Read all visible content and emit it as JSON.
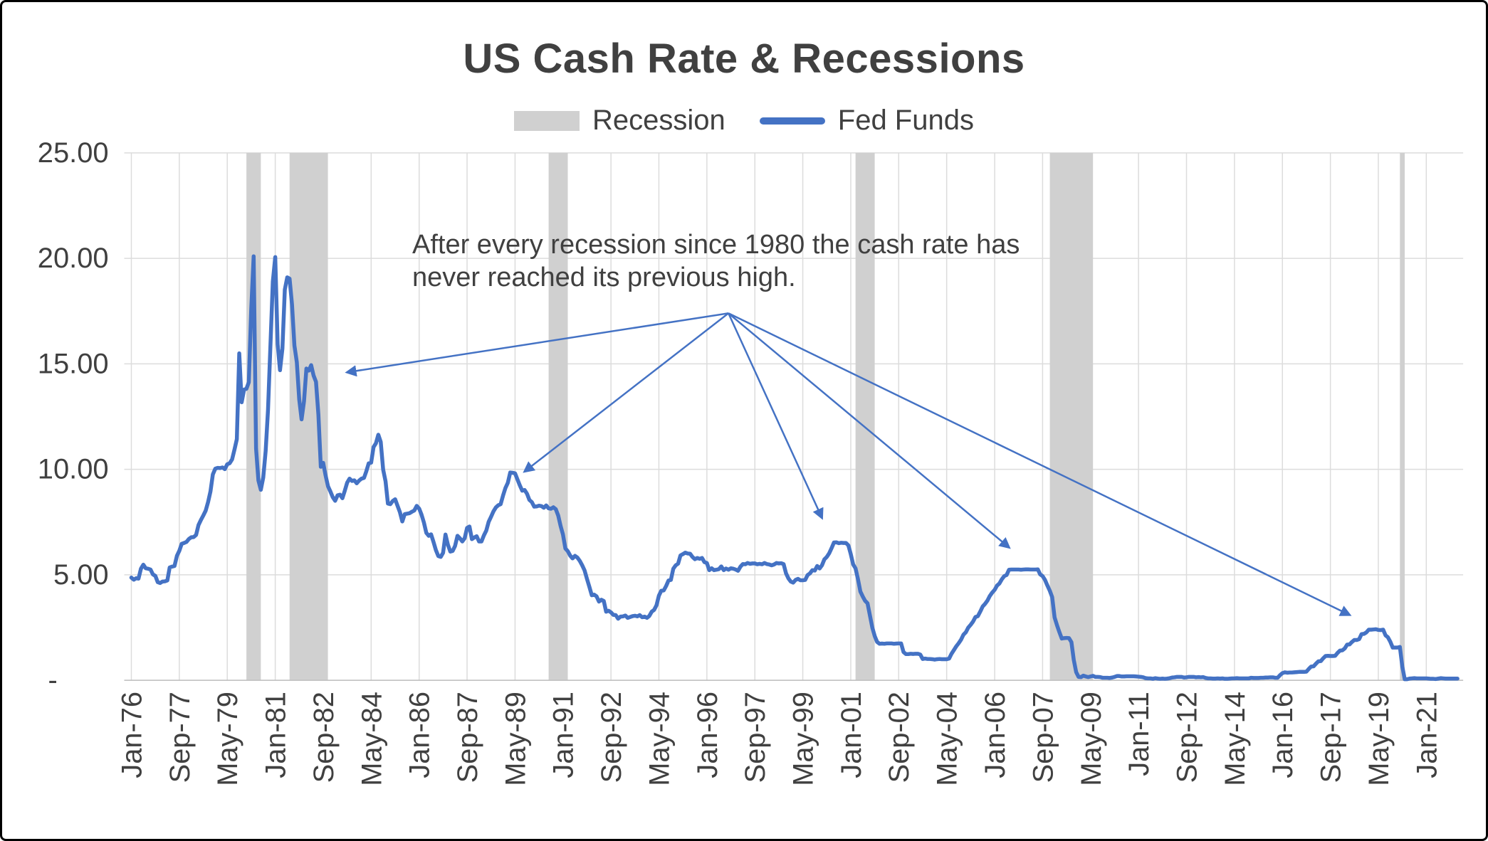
{
  "chart": {
    "legend": {
      "recession": "Recession",
      "fed_funds": "Fed Funds"
    },
    "annotation": {
      "text": "After every recession since 1980 the cash rate has never reached its previous high.",
      "arrow_origin": {
        "month": "1996-10",
        "value": 17.4
      },
      "arrow_targets": [
        {
          "month": "1983-07",
          "value": 14.6
        },
        {
          "month": "1989-09",
          "value": 9.9
        },
        {
          "month": "2000-01",
          "value": 7.7
        },
        {
          "month": "2006-07",
          "value": 6.3
        },
        {
          "month": "2018-05",
          "value": 3.1
        }
      ]
    },
    "colors": {
      "line": "#4472C4",
      "recession": "#D0D0D0",
      "gridline": "#DCDCDC",
      "axis": "#BFBFBF",
      "text": "#404040"
    }
  },
  "chart_data": {
    "type": "line",
    "title": "US Cash Rate & Recessions",
    "xlabel": "",
    "ylabel": "",
    "grid": true,
    "legend_position": "top",
    "legend_entries": [
      "Recession",
      "Fed Funds"
    ],
    "series_name": "Fed Funds",
    "frequency": "monthly",
    "start_month": "1976-01",
    "end_month": "2022-02",
    "ylim": [
      0,
      25
    ],
    "y_ticks": [
      {
        "label": "25.00",
        "value": 25
      },
      {
        "label": "20.00",
        "value": 20
      },
      {
        "label": "15.00",
        "value": 15
      },
      {
        "label": "10.00",
        "value": 10
      },
      {
        "label": "5.00",
        "value": 5
      },
      {
        "label": "-",
        "value": 0
      }
    ],
    "x_tick_interval_months": 20,
    "x_tick_labels": [
      "Jan-76",
      "Sep-77",
      "May-79",
      "Jan-81",
      "Sep-82",
      "May-84",
      "Jan-86",
      "Sep-87",
      "May-89",
      "Jan-91",
      "Sep-92",
      "May-94",
      "Jan-96",
      "Sep-97",
      "May-99",
      "Jan-01",
      "Sep-02",
      "May-04",
      "Jan-06",
      "Sep-07",
      "May-09",
      "Jan-11",
      "Sep-12",
      "May-14",
      "Jan-16",
      "Sep-17",
      "May-19",
      "Jan-21"
    ],
    "recessions": [
      {
        "start": "1980-01",
        "end": "1980-07"
      },
      {
        "start": "1981-07",
        "end": "1982-11"
      },
      {
        "start": "1990-07",
        "end": "1991-03"
      },
      {
        "start": "2001-03",
        "end": "2001-11"
      },
      {
        "start": "2007-12",
        "end": "2009-06"
      },
      {
        "start": "2020-02",
        "end": "2020-04"
      }
    ],
    "values": [
      4.87,
      4.77,
      4.84,
      4.82,
      5.29,
      5.48,
      5.31,
      5.29,
      5.25,
      5.02,
      4.95,
      4.65,
      4.61,
      4.68,
      4.69,
      4.73,
      5.35,
      5.39,
      5.42,
      5.9,
      6.14,
      6.47,
      6.51,
      6.56,
      6.7,
      6.78,
      6.79,
      6.89,
      7.36,
      7.6,
      7.81,
      8.04,
      8.45,
      8.96,
      9.76,
      10.03,
      10.07,
      10.06,
      10.09,
      10.01,
      10.24,
      10.29,
      10.47,
      10.94,
      11.43,
      15.5,
      13.18,
      13.78,
      13.82,
      14.13,
      17.6,
      20.1,
      10.98,
      9.47,
      9.03,
      9.61,
      10.87,
      12.81,
      15.85,
      18.9,
      20.06,
      15.93,
      14.7,
      15.72,
      18.52,
      19.1,
      19.04,
      17.82,
      15.87,
      15.08,
      13.31,
      12.37,
      13.22,
      14.78,
      14.68,
      14.94,
      14.45,
      14.15,
      12.59,
      10.12,
      10.31,
      9.71,
      9.2,
      8.95,
      8.68,
      8.51,
      8.77,
      8.8,
      8.63,
      8.98,
      9.37,
      9.56,
      9.45,
      9.48,
      9.34,
      9.47,
      9.56,
      9.59,
      9.91,
      10.29,
      10.32,
      11.06,
      11.23,
      11.64,
      11.3,
      9.99,
      9.43,
      8.38,
      8.35,
      8.5,
      8.58,
      8.27,
      7.97,
      7.53,
      7.88,
      7.9,
      7.92,
      7.99,
      8.05,
      8.27,
      8.14,
      7.86,
      7.48,
      6.99,
      6.85,
      6.92,
      6.56,
      6.17,
      5.89,
      5.85,
      6.04,
      6.91,
      6.43,
      6.1,
      6.13,
      6.37,
      6.85,
      6.73,
      6.58,
      6.73,
      7.22,
      7.29,
      6.69,
      6.77,
      6.83,
      6.58,
      6.58,
      6.87,
      7.09,
      7.51,
      7.75,
      8.01,
      8.19,
      8.3,
      8.35,
      8.76,
      9.12,
      9.36,
      9.85,
      9.84,
      9.81,
      9.53,
      9.24,
      8.99,
      9.02,
      8.84,
      8.55,
      8.45,
      8.23,
      8.24,
      8.28,
      8.26,
      8.18,
      8.29,
      8.15,
      8.13,
      8.2,
      8.11,
      7.81,
      7.31,
      6.91,
      6.25,
      6.12,
      5.91,
      5.78,
      5.9,
      5.82,
      5.66,
      5.45,
      5.21,
      4.81,
      4.43,
      4.03,
      4.06,
      3.98,
      3.73,
      3.82,
      3.76,
      3.25,
      3.3,
      3.22,
      3.1,
      3.09,
      2.92,
      3.02,
      3.03,
      3.07,
      2.96,
      3.0,
      3.04,
      3.06,
      3.03,
      3.09,
      2.99,
      3.02,
      2.96,
      3.05,
      3.25,
      3.34,
      3.56,
      4.01,
      4.25,
      4.26,
      4.47,
      4.73,
      4.76,
      5.29,
      5.45,
      5.53,
      5.92,
      5.98,
      6.05,
      6.01,
      6.0,
      5.85,
      5.74,
      5.8,
      5.76,
      5.8,
      5.6,
      5.56,
      5.22,
      5.31,
      5.22,
      5.24,
      5.27,
      5.4,
      5.22,
      5.3,
      5.24,
      5.31,
      5.29,
      5.25,
      5.19,
      5.39,
      5.51,
      5.5,
      5.56,
      5.52,
      5.54,
      5.54,
      5.5,
      5.52,
      5.5,
      5.56,
      5.51,
      5.49,
      5.45,
      5.49,
      5.56,
      5.54,
      5.55,
      5.51,
      5.07,
      4.83,
      4.68,
      4.63,
      4.76,
      4.81,
      4.74,
      4.74,
      4.76,
      4.99,
      5.07,
      5.22,
      5.2,
      5.42,
      5.3,
      5.45,
      5.73,
      5.85,
      6.02,
      6.27,
      6.53,
      6.54,
      6.5,
      6.52,
      6.51,
      6.51,
      6.4,
      5.98,
      5.49,
      5.31,
      4.8,
      4.21,
      3.97,
      3.77,
      3.65,
      3.07,
      2.49,
      2.09,
      1.82,
      1.73,
      1.74,
      1.73,
      1.75,
      1.75,
      1.75,
      1.73,
      1.74,
      1.75,
      1.75,
      1.34,
      1.24,
      1.24,
      1.26,
      1.25,
      1.26,
      1.26,
      1.22,
      1.01,
      1.03,
      1.01,
      1.01,
      1.0,
      0.98,
      1.0,
      1.01,
      1.0,
      1.0,
      1.0,
      1.03,
      1.26,
      1.43,
      1.61,
      1.76,
      1.93,
      2.16,
      2.28,
      2.5,
      2.63,
      2.79,
      3.0,
      3.04,
      3.26,
      3.5,
      3.62,
      3.78,
      4.0,
      4.16,
      4.29,
      4.49,
      4.59,
      4.79,
      4.94,
      4.99,
      5.24,
      5.25,
      5.25,
      5.25,
      5.25,
      5.24,
      5.25,
      5.26,
      5.26,
      5.25,
      5.25,
      5.25,
      5.26,
      5.02,
      4.94,
      4.76,
      4.49,
      4.24,
      3.94,
      2.98,
      2.61,
      2.28,
      1.98,
      2.0,
      2.01,
      2.0,
      1.81,
      0.97,
      0.39,
      0.16,
      0.15,
      0.22,
      0.18,
      0.15,
      0.18,
      0.21,
      0.16,
      0.16,
      0.15,
      0.12,
      0.12,
      0.12,
      0.11,
      0.13,
      0.16,
      0.2,
      0.2,
      0.18,
      0.18,
      0.19,
      0.19,
      0.19,
      0.19,
      0.18,
      0.17,
      0.16,
      0.14,
      0.1,
      0.09,
      0.09,
      0.07,
      0.1,
      0.08,
      0.07,
      0.08,
      0.07,
      0.08,
      0.1,
      0.13,
      0.14,
      0.16,
      0.16,
      0.16,
      0.13,
      0.14,
      0.16,
      0.16,
      0.16,
      0.14,
      0.15,
      0.14,
      0.15,
      0.11,
      0.09,
      0.09,
      0.08,
      0.08,
      0.09,
      0.08,
      0.09,
      0.07,
      0.07,
      0.08,
      0.09,
      0.09,
      0.1,
      0.09,
      0.09,
      0.09,
      0.09,
      0.09,
      0.12,
      0.11,
      0.11,
      0.11,
      0.12,
      0.12,
      0.13,
      0.13,
      0.14,
      0.14,
      0.12,
      0.12,
      0.24,
      0.34,
      0.38,
      0.36,
      0.37,
      0.37,
      0.38,
      0.39,
      0.4,
      0.4,
      0.4,
      0.41,
      0.54,
      0.65,
      0.66,
      0.79,
      0.9,
      0.91,
      1.04,
      1.15,
      1.16,
      1.15,
      1.15,
      1.16,
      1.3,
      1.41,
      1.42,
      1.51,
      1.69,
      1.7,
      1.82,
      1.91,
      1.91,
      1.95,
      2.19,
      2.2,
      2.27,
      2.4,
      2.4,
      2.41,
      2.42,
      2.39,
      2.38,
      2.4,
      2.13,
      2.04,
      1.83,
      1.55,
      1.55,
      1.55,
      1.58,
      0.65,
      0.05,
      0.05,
      0.08,
      0.09,
      0.1,
      0.09,
      0.09,
      0.09,
      0.09,
      0.09,
      0.08,
      0.07,
      0.07,
      0.06,
      0.08,
      0.1,
      0.09,
      0.08,
      0.08,
      0.08,
      0.08,
      0.08,
      0.08
    ]
  }
}
